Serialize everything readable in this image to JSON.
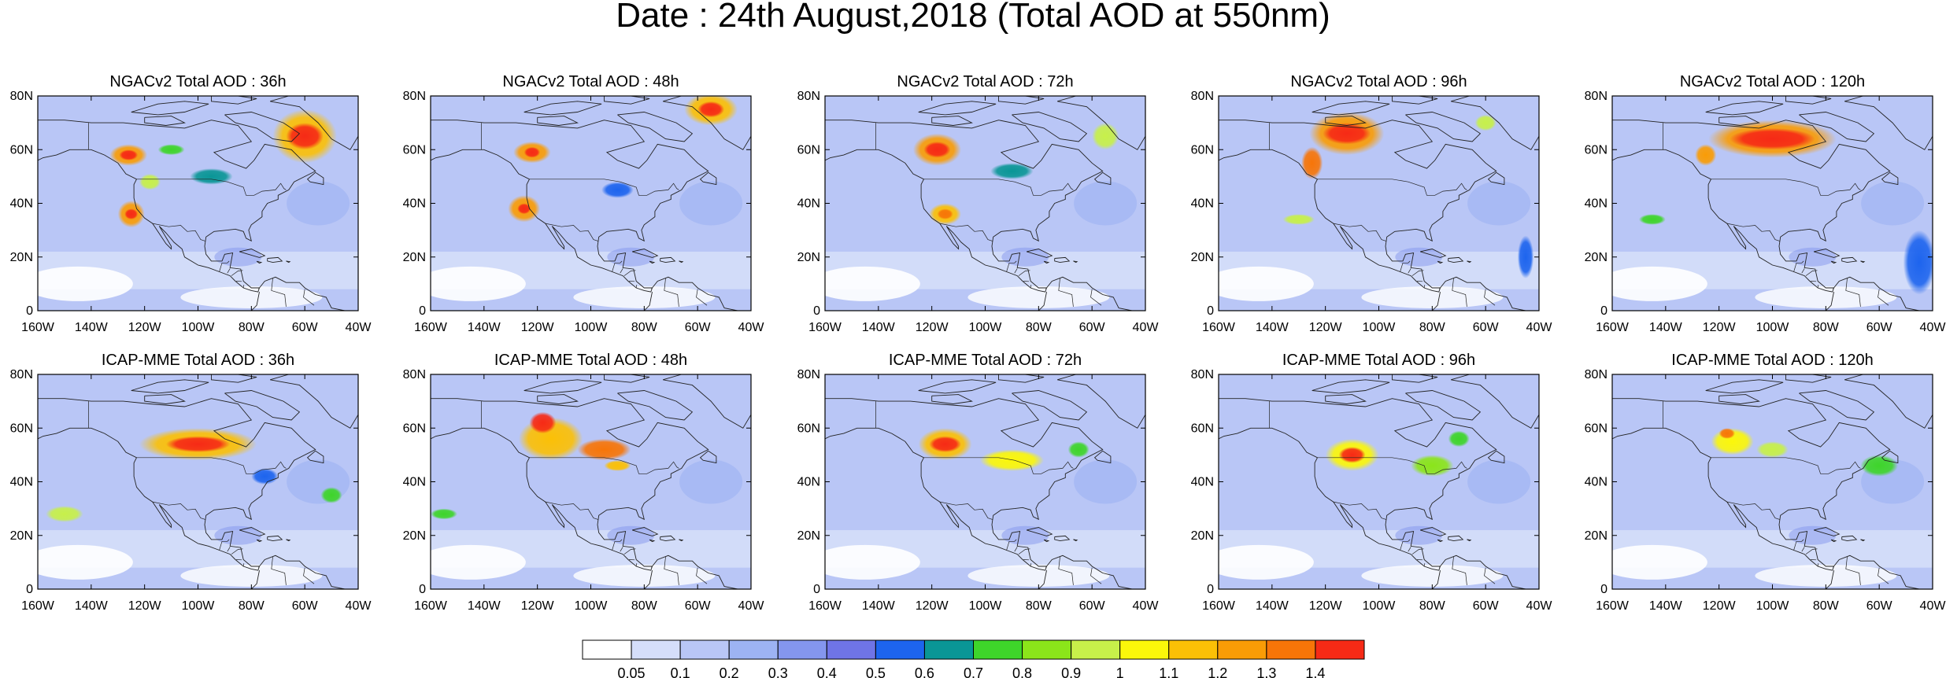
{
  "figure": {
    "title": "Date : 24th August,2018 (Total AOD at 550nm)"
  },
  "axes": {
    "lat_ticks": [
      "80N",
      "60N",
      "40N",
      "20N",
      "0"
    ],
    "lon_ticks": [
      "160W",
      "140W",
      "120W",
      "100W",
      "80W",
      "60W",
      "40W"
    ]
  },
  "panels": [
    {
      "title": "NGACv2 Total AOD : 36h",
      "model": "NGACv2",
      "lead": "36h"
    },
    {
      "title": "NGACv2 Total AOD : 48h",
      "model": "NGACv2",
      "lead": "48h"
    },
    {
      "title": "NGACv2 Total AOD : 72h",
      "model": "NGACv2",
      "lead": "72h"
    },
    {
      "title": "NGACv2 Total AOD : 96h",
      "model": "NGACv2",
      "lead": "96h"
    },
    {
      "title": "NGACv2 Total AOD : 120h",
      "model": "NGACv2",
      "lead": "120h"
    },
    {
      "title": "ICAP-MME Total AOD : 36h",
      "model": "ICAP-MME",
      "lead": "36h"
    },
    {
      "title": "ICAP-MME Total AOD : 48h",
      "model": "ICAP-MME",
      "lead": "48h"
    },
    {
      "title": "ICAP-MME Total AOD : 72h",
      "model": "ICAP-MME",
      "lead": "72h"
    },
    {
      "title": "ICAP-MME Total AOD : 96h",
      "model": "ICAP-MME",
      "lead": "96h"
    },
    {
      "title": "ICAP-MME Total AOD : 120h",
      "model": "ICAP-MME",
      "lead": "120h"
    }
  ],
  "colorbar": {
    "labels": [
      "0.05",
      "0.1",
      "0.2",
      "0.3",
      "0.4",
      "0.5",
      "0.6",
      "0.7",
      "0.8",
      "0.9",
      "1",
      "1.1",
      "1.2",
      "1.3",
      "1.4"
    ],
    "colors": [
      "#ffffff",
      "#d5defa",
      "#b9c6f6",
      "#9db3f3",
      "#8496ee",
      "#6f74e6",
      "#1d64ee",
      "#0a9696",
      "#3ed52a",
      "#8be51a",
      "#c7f04a",
      "#fbf70a",
      "#fbc006",
      "#f99c06",
      "#f77508",
      "#f62a16"
    ]
  }
}
